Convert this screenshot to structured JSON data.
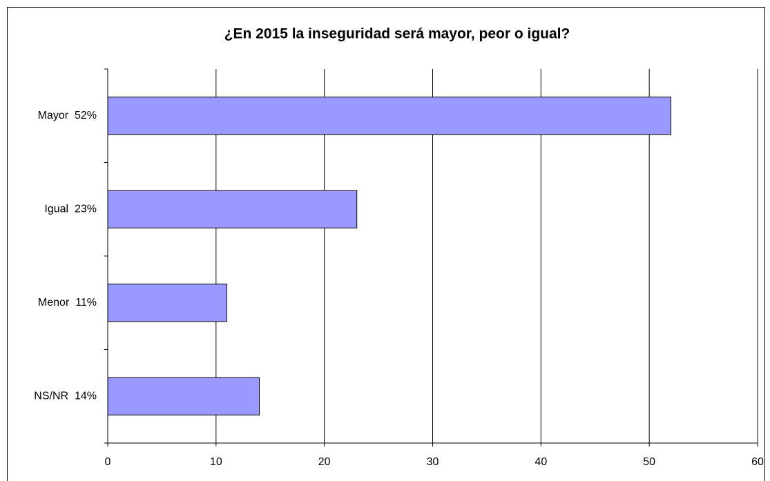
{
  "chart_data": {
    "type": "hbar",
    "title": "¿En 2015 la inseguridad será mayor, peor o igual?",
    "categories": [
      "Mayor  52%",
      "Igual  23%",
      "Menor  11%",
      "NS/NR  14%"
    ],
    "values": [
      52,
      23,
      11,
      14
    ],
    "color": "#9999ff",
    "xlim": [
      0,
      60
    ],
    "xticks": [
      0,
      10,
      20,
      30,
      40,
      50,
      60
    ],
    "grid": true
  }
}
